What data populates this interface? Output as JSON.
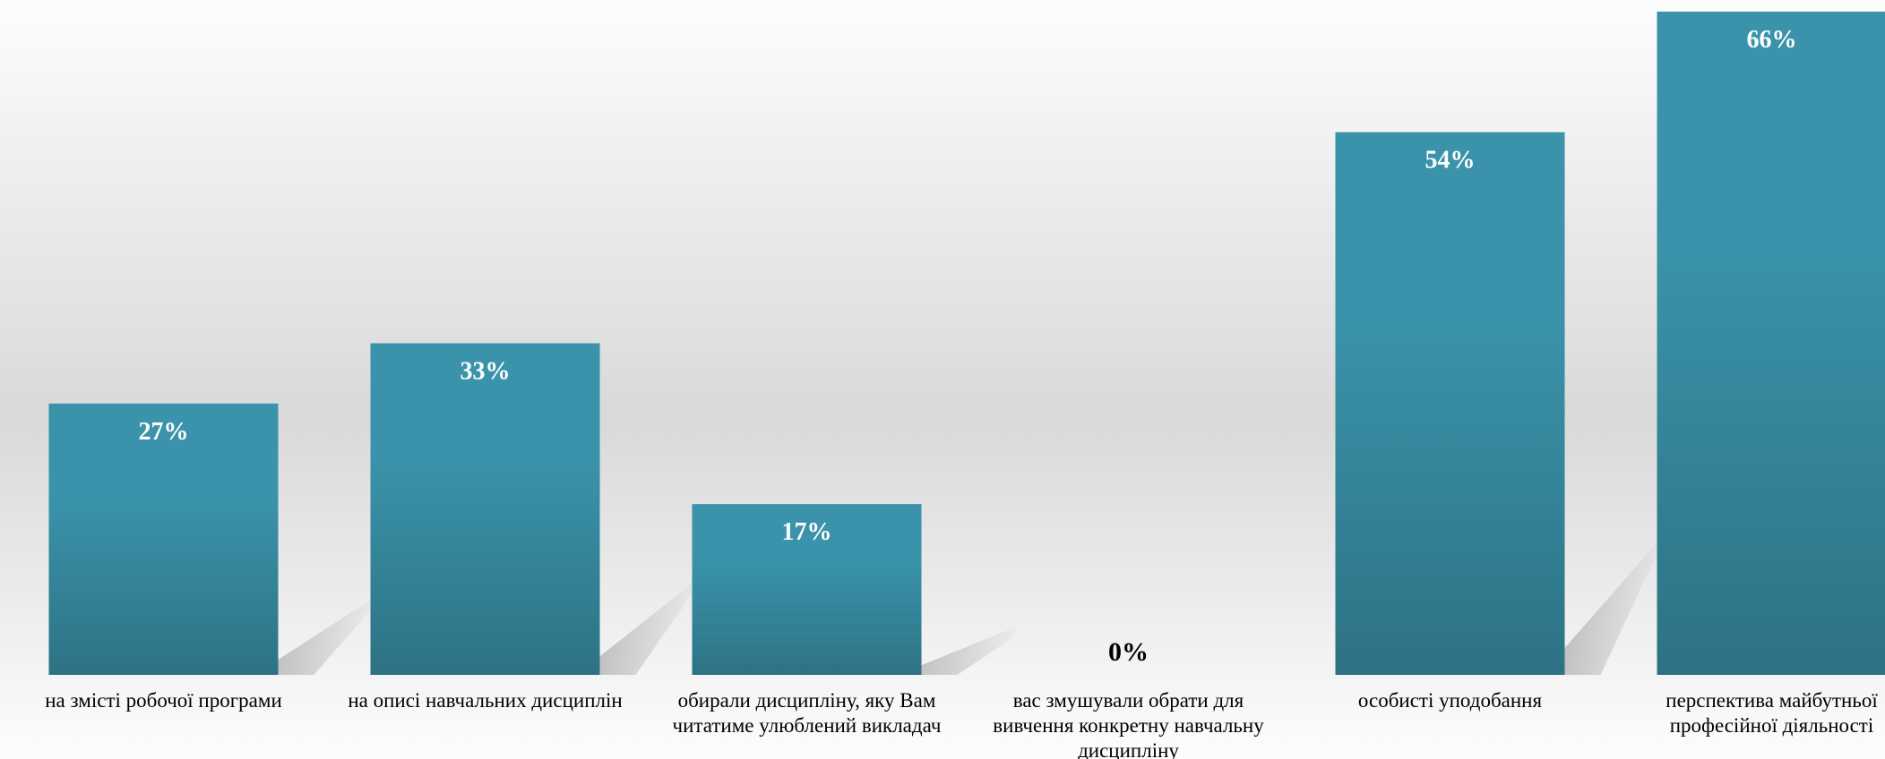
{
  "chart_data": {
    "type": "bar",
    "title": "",
    "xlabel": "",
    "ylabel": "",
    "ylim": [
      0,
      66
    ],
    "grid": false,
    "legend": "none",
    "categories": [
      "на змісті робочої програми",
      "на описі навчальних дисциплін",
      "обирали дисципліну, яку Вам читатиме улюблений викладач",
      "вас змушували обрати для вивчення конкретну навчальну дисципліну",
      "особисті уподобання",
      "перспектива майбутньої професійної діяльності"
    ],
    "values": [
      27,
      33,
      17,
      0,
      54,
      66
    ],
    "data_labels": [
      "27%",
      "33%",
      "17%",
      "0%",
      "54%",
      "66%"
    ],
    "colors": {
      "bar_top": "#3a93aa",
      "bar_bottom": "#2d7284",
      "label_inside": "#ffffff",
      "label_outside": "#000000",
      "background_light": "#fdfdfd",
      "background_mid": "#d9d9d9"
    }
  }
}
